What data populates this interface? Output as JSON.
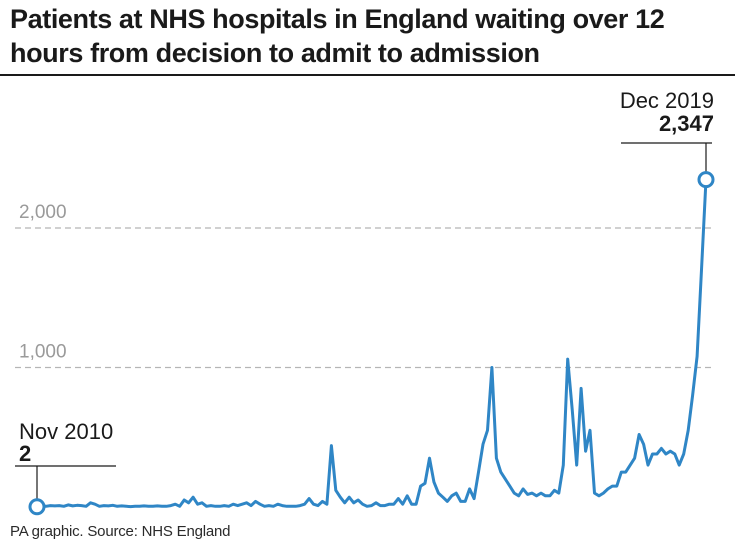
{
  "title": "Patients at NHS hospitals in England waiting over 12 hours from decision to admit to admission",
  "source": "PA graphic. Source: NHS England",
  "colors": {
    "line": "#2f86c6",
    "grid": "#b5b5b5",
    "text": "#1a1a1a",
    "tick": "#9a9a9a"
  },
  "chart_data": {
    "type": "line",
    "title": "Patients at NHS hospitals in England waiting over 12 hours from decision to admit to admission",
    "xlabel": "",
    "ylabel": "",
    "ylim": [
      0,
      2500
    ],
    "yticks": [
      1000,
      2000
    ],
    "ytick_labels": [
      "1,000",
      "2,000"
    ],
    "grid": "horizontal dashed at labelled ticks",
    "x_start": "Nov 2010",
    "x_end": "Dec 2019",
    "series": [
      {
        "values": [
          2,
          15,
          5,
          10,
          8,
          10,
          5,
          15,
          8,
          12,
          10,
          5,
          30,
          20,
          5,
          10,
          8,
          12,
          5,
          8,
          5,
          3,
          5,
          5,
          8,
          5,
          5,
          8,
          5,
          5,
          10,
          20,
          5,
          50,
          30,
          70,
          20,
          30,
          5,
          10,
          5,
          5,
          10,
          5,
          20,
          10,
          20,
          30,
          10,
          40,
          20,
          5,
          10,
          5,
          20,
          10,
          5,
          5,
          5,
          10,
          20,
          60,
          20,
          10,
          40,
          20,
          440,
          120,
          70,
          30,
          70,
          30,
          50,
          20,
          5,
          10,
          30,
          10,
          10,
          20,
          20,
          60,
          20,
          80,
          20,
          20,
          150,
          170,
          350,
          180,
          100,
          70,
          40,
          80,
          100,
          40,
          40,
          130,
          60,
          250,
          450,
          550,
          1000,
          350,
          250,
          200,
          150,
          100,
          80,
          130,
          90,
          100,
          80,
          100,
          80,
          80,
          120,
          100,
          300,
          1060,
          700,
          300,
          850,
          400,
          550,
          100,
          80,
          100,
          130,
          150,
          150,
          250,
          250,
          300,
          350,
          520,
          450,
          300,
          380,
          380,
          420,
          380,
          400,
          380,
          300,
          380,
          550,
          800,
          1080,
          1700,
          2347
        ]
      }
    ],
    "annotations": [
      {
        "label": "Nov 2010",
        "value": "2"
      },
      {
        "label": "Dec 2019",
        "value": "2,347"
      }
    ]
  }
}
